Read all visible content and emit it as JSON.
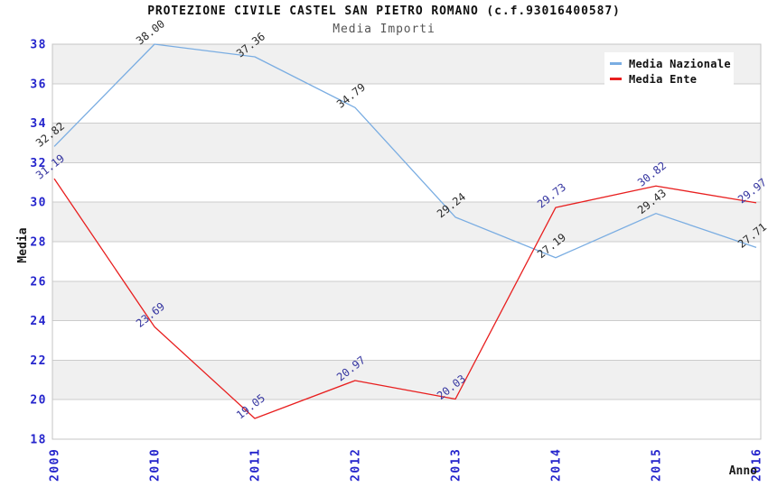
{
  "chart_data": {
    "type": "line",
    "title": "PROTEZIONE CIVILE CASTEL SAN PIETRO ROMANO (c.f.93016400587)",
    "subtitle": "Media Importi",
    "x": [
      "2009",
      "2010",
      "2011",
      "2012",
      "2013",
      "2014",
      "2015",
      "2016"
    ],
    "series": [
      {
        "name": "Media Nazionale",
        "color": "#7aade2",
        "label_color": "#2b2b2b",
        "values": [
          32.82,
          38.0,
          37.36,
          34.79,
          29.24,
          27.19,
          29.43,
          27.71
        ]
      },
      {
        "name": "Media Ente",
        "color": "#e81f1f",
        "label_color": "#3535a0",
        "values": [
          31.19,
          23.69,
          19.05,
          20.97,
          20.03,
          29.73,
          30.82,
          29.97
        ]
      }
    ],
    "xlabel": "Anno",
    "ylabel": "Media",
    "ylim": [
      18,
      38
    ],
    "yticks": [
      18,
      20,
      22,
      24,
      26,
      28,
      30,
      32,
      34,
      36,
      38
    ],
    "grid": true,
    "legend_position": "top-right",
    "tick_label_color": "#2424cc",
    "axis_title_color": "#1a1a1a",
    "grid_color": "#cccccc",
    "band_colors": [
      "#f0f0f0",
      "#ffffff"
    ],
    "data_label_rotation_deg": -38
  }
}
